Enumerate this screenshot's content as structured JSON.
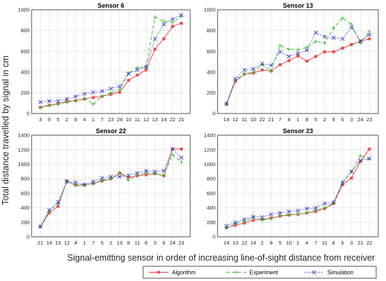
{
  "figure": {
    "ylabel": "Total distance travelled by signal in cm",
    "xlabel": "Signal-emitting sensor in order of increasing line-of-sight distance from receiver"
  },
  "legend": {
    "placement": "bottom",
    "entries": [
      {
        "label": "Algorithm",
        "color": "#e8383b",
        "marker": "asterisk",
        "line": "solid"
      },
      {
        "label": "Experiment",
        "color": "#2dbd2d",
        "marker": "plus",
        "line": "dashed"
      },
      {
        "label": "Simulation",
        "color": "#3a3ad0",
        "marker": "cross",
        "line": "dotted"
      }
    ]
  },
  "chart_data": [
    {
      "type": "line",
      "title": "Sensor 6",
      "categories": [
        "3",
        "9",
        "5",
        "2",
        "8",
        "4",
        "1",
        "7",
        "23",
        "24",
        "10",
        "11",
        "12",
        "13",
        "14",
        "22",
        "21"
      ],
      "ylim": [
        0,
        1000
      ],
      "yticks": [
        0,
        200,
        400,
        600,
        800,
        1000
      ],
      "grid": true,
      "series": [
        {
          "name": "Algorithm",
          "values": [
            60,
            80,
            95,
            115,
            125,
            140,
            155,
            165,
            185,
            205,
            320,
            370,
            420,
            620,
            720,
            840,
            870
          ]
        },
        {
          "name": "Experiment",
          "values": [
            55,
            75,
            90,
            110,
            120,
            145,
            90,
            165,
            200,
            230,
            390,
            440,
            450,
            930,
            890,
            880,
            940
          ]
        },
        {
          "name": "Simulation",
          "values": [
            110,
            120,
            120,
            140,
            165,
            190,
            205,
            215,
            240,
            260,
            385,
            420,
            450,
            720,
            860,
            910,
            950
          ]
        }
      ]
    },
    {
      "type": "line",
      "title": "Sensor 13",
      "categories": [
        "14",
        "12",
        "11",
        "10",
        "22",
        "21",
        "7",
        "4",
        "1",
        "8",
        "5",
        "2",
        "9",
        "6",
        "3",
        "24",
        "23"
      ],
      "ylim": [
        0,
        1000
      ],
      "yticks": [
        0,
        200,
        400,
        600,
        800,
        1000
      ],
      "grid": true,
      "series": [
        {
          "name": "Algorithm",
          "values": [
            90,
            310,
            380,
            390,
            420,
            410,
            470,
            510,
            555,
            505,
            550,
            595,
            595,
            630,
            665,
            695,
            720
          ]
        },
        {
          "name": "Experiment",
          "values": [
            95,
            325,
            380,
            400,
            470,
            410,
            655,
            620,
            615,
            640,
            695,
            680,
            825,
            920,
            860,
            680,
            790
          ]
        },
        {
          "name": "Simulation",
          "values": [
            95,
            335,
            420,
            430,
            480,
            465,
            595,
            550,
            580,
            610,
            780,
            740,
            730,
            720,
            830,
            700,
            760
          ]
        }
      ]
    },
    {
      "type": "line",
      "title": "Sensor 22",
      "categories": [
        "21",
        "14",
        "13",
        "12",
        "4",
        "1",
        "7",
        "5",
        "2",
        "10",
        "8",
        "11",
        "6",
        "3",
        "9",
        "24",
        "23"
      ],
      "ylim": [
        0,
        1400
      ],
      "yticks": [
        0,
        200,
        400,
        600,
        800,
        1000,
        1200,
        1400
      ],
      "grid": true,
      "series": [
        {
          "name": "Algorithm",
          "values": [
            140,
            330,
            420,
            770,
            710,
            715,
            735,
            770,
            800,
            880,
            820,
            840,
            855,
            870,
            840,
            1210,
            1210
          ]
        },
        {
          "name": "Experiment",
          "values": [
            140,
            350,
            460,
            760,
            720,
            720,
            730,
            780,
            800,
            885,
            780,
            850,
            880,
            870,
            850,
            1130,
            1030
          ]
        },
        {
          "name": "Simulation",
          "values": [
            145,
            370,
            480,
            760,
            750,
            720,
            760,
            810,
            830,
            830,
            845,
            880,
            910,
            900,
            910,
            1210,
            1090
          ]
        }
      ]
    },
    {
      "type": "line",
      "title": "Sensor 23",
      "categories": [
        "24",
        "13",
        "12",
        "14",
        "2",
        "9",
        "5",
        "10",
        "1",
        "4",
        "7",
        "11",
        "8",
        "6",
        "3",
        "21",
        "22"
      ],
      "ylim": [
        0,
        1400
      ],
      "yticks": [
        0,
        200,
        400,
        600,
        800,
        1000,
        1200,
        1400
      ],
      "grid": true,
      "series": [
        {
          "name": "Algorithm",
          "values": [
            125,
            160,
            190,
            230,
            240,
            260,
            285,
            300,
            310,
            330,
            350,
            390,
            460,
            720,
            810,
            1040,
            1210
          ]
        },
        {
          "name": "Experiment",
          "values": [
            120,
            185,
            215,
            265,
            230,
            250,
            290,
            310,
            310,
            330,
            370,
            400,
            470,
            760,
            900,
            1120,
            1070
          ]
        },
        {
          "name": "Simulation",
          "values": [
            150,
            200,
            240,
            280,
            270,
            310,
            330,
            350,
            360,
            390,
            400,
            460,
            480,
            740,
            900,
            1050,
            1080
          ]
        }
      ]
    }
  ]
}
